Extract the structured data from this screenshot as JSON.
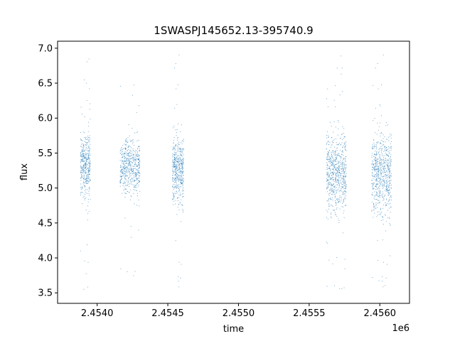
{
  "chart_data": {
    "type": "scatter",
    "title": "1SWASPJ145652.13-395740.9",
    "xlabel": "time",
    "ylabel": "flux",
    "x_offset_label": "1e6",
    "xlim": [
      2.45372,
      2.45621
    ],
    "ylim": [
      3.35,
      7.1
    ],
    "x_ticks": [
      2.454,
      2.4545,
      2.455,
      2.4555,
      2.456
    ],
    "x_tick_labels": [
      "2.4540",
      "2.4545",
      "2.4550",
      "2.4555",
      "2.4560"
    ],
    "y_ticks": [
      3.5,
      4.0,
      4.5,
      5.0,
      5.5,
      6.0,
      6.5,
      7.0
    ],
    "y_tick_labels": [
      "3.5",
      "4.0",
      "4.5",
      "5.0",
      "5.5",
      "6.0",
      "6.5",
      "7.0"
    ],
    "grid": false,
    "marker_color": "#1f77b4",
    "observation_clusters": [
      {
        "x_range": [
          2.45388,
          2.45395
        ],
        "y_core": [
          4.75,
          5.9
        ],
        "y_extreme": [
          3.5,
          6.9
        ],
        "density": 0.6
      },
      {
        "x_range": [
          2.45416,
          2.4543
        ],
        "y_core": [
          4.85,
          5.8
        ],
        "y_extreme": [
          3.7,
          6.6
        ],
        "density": 0.8
      },
      {
        "x_range": [
          2.45453,
          2.45461
        ],
        "y_core": [
          4.7,
          5.85
        ],
        "y_extreme": [
          3.55,
          7.0
        ],
        "density": 0.7
      },
      {
        "x_range": [
          2.45562,
          2.45576
        ],
        "y_core": [
          4.5,
          5.95
        ],
        "y_extreme": [
          3.5,
          6.95
        ],
        "density": 1.0
      },
      {
        "x_range": [
          2.45594,
          2.45608
        ],
        "y_core": [
          4.5,
          5.95
        ],
        "y_extreme": [
          3.55,
          7.0
        ],
        "density": 1.0
      }
    ]
  }
}
